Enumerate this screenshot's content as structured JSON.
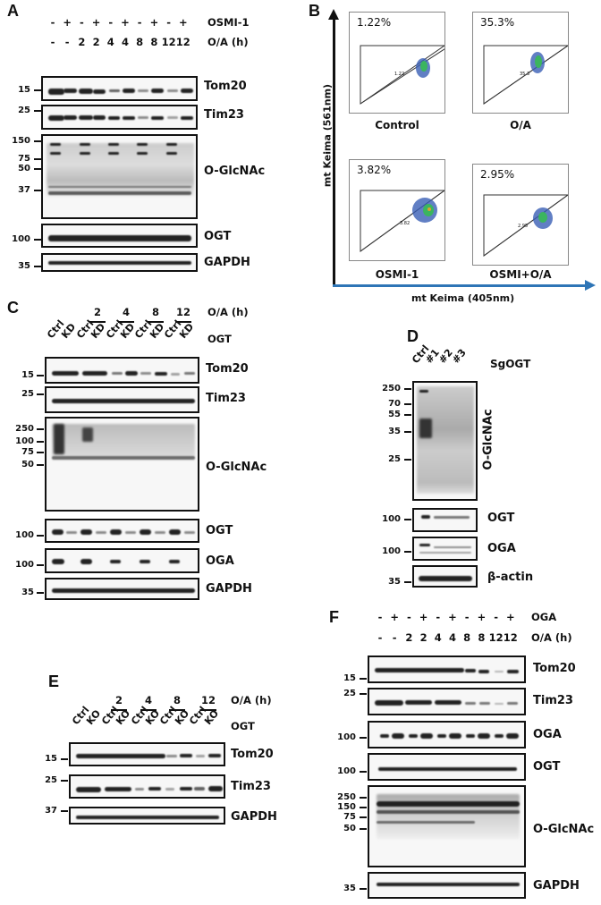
{
  "panels": {
    "A": {
      "label": "A",
      "rows": [
        {
          "label": "OSMI-1",
          "values": [
            "-",
            "+",
            "-",
            "+",
            "-",
            "+",
            "-",
            "+",
            "-",
            "+"
          ]
        },
        {
          "label": "O/A (h)",
          "values": [
            "-",
            "-",
            "2",
            "2",
            "4",
            "4",
            "8",
            "8",
            "12",
            "12"
          ]
        }
      ],
      "blots": [
        {
          "protein": "Tom20",
          "mw": [
            "15"
          ]
        },
        {
          "protein": "Tim23",
          "mw": [
            "25"
          ]
        },
        {
          "protein": "O-GlcNAc",
          "mw": [
            "150",
            "75",
            "50",
            "37"
          ]
        },
        {
          "protein": "OGT",
          "mw": [
            "100"
          ]
        },
        {
          "protein": "GAPDH",
          "mw": [
            "35"
          ]
        }
      ]
    },
    "B": {
      "label": "B",
      "y_axis": "mt Keima (561nm)",
      "x_axis": "mt Keima (405nm)",
      "plots": [
        {
          "name": "Control",
          "percent": "1.22%",
          "gate_value": "1.22"
        },
        {
          "name": "O/A",
          "percent": "35.3%",
          "gate_value": "35.3"
        },
        {
          "name": "OSMI-1",
          "percent": "3.82%",
          "gate_value": "3.82"
        },
        {
          "name": "OSMI+O/A",
          "percent": "2.95%",
          "gate_value": "2.95"
        }
      ],
      "axis_ticks": [
        "10^1",
        "10^2",
        "10^3",
        "10^4",
        "10^5"
      ]
    },
    "C": {
      "label": "C",
      "time_row_label": "O/A (h)",
      "times": [
        "2",
        "4",
        "8",
        "12"
      ],
      "genotype_row_label": "OGT",
      "lanes": [
        "Ctrl",
        "KD",
        "Ctrl",
        "KD",
        "Ctrl",
        "KD",
        "Ctrl",
        "KD",
        "Ctrl",
        "KD"
      ],
      "blots": [
        {
          "protein": "Tom20",
          "mw": [
            "15"
          ]
        },
        {
          "protein": "Tim23",
          "mw": [
            "25"
          ]
        },
        {
          "protein": "O-GlcNAc",
          "mw": [
            "250",
            "100",
            "75",
            "50"
          ]
        },
        {
          "protein": "OGT",
          "mw": [
            "100"
          ]
        },
        {
          "protein": "OGA",
          "mw": [
            "100"
          ]
        },
        {
          "protein": "GAPDH",
          "mw": [
            "35"
          ]
        }
      ]
    },
    "D": {
      "label": "D",
      "row_label": "SgOGT",
      "lanes": [
        "Ctrl",
        "#1",
        "#2",
        "#3"
      ],
      "blots": [
        {
          "protein": "O-GlcNAc",
          "mw": [
            "250",
            "70",
            "55",
            "35",
            "25"
          ]
        },
        {
          "protein": "OGT",
          "mw": [
            "100"
          ]
        },
        {
          "protein": "OGA",
          "mw": [
            "100"
          ]
        },
        {
          "protein": "β-actin",
          "mw": [
            "35"
          ]
        }
      ]
    },
    "E": {
      "label": "E",
      "time_row_label": "O/A (h)",
      "times": [
        "2",
        "4",
        "8",
        "12"
      ],
      "genotype_row_label": "OGT",
      "lanes": [
        "Ctrl",
        "KO",
        "Ctrl",
        "KO",
        "Ctrl",
        "KO",
        "Ctrl",
        "KO",
        "Ctrl",
        "KO"
      ],
      "blots": [
        {
          "protein": "Tom20",
          "mw": [
            "15"
          ]
        },
        {
          "protein": "Tim23",
          "mw": [
            "25"
          ]
        },
        {
          "protein": "GAPDH",
          "mw": [
            "37"
          ]
        }
      ]
    },
    "F": {
      "label": "F",
      "rows": [
        {
          "label": "OGA",
          "values": [
            "-",
            "+",
            "-",
            "+",
            "-",
            "+",
            "-",
            "+",
            "-",
            "+"
          ]
        },
        {
          "label": "O/A (h)",
          "values": [
            "-",
            "-",
            "2",
            "2",
            "4",
            "4",
            "8",
            "8",
            "12",
            "12"
          ]
        }
      ],
      "blots": [
        {
          "protein": "Tom20",
          "mw": [
            "15"
          ]
        },
        {
          "protein": "Tim23",
          "mw": [
            "25"
          ]
        },
        {
          "protein": "OGA",
          "mw": [
            "100"
          ]
        },
        {
          "protein": "OGT",
          "mw": [
            "100"
          ]
        },
        {
          "protein": "O-GlcNAc",
          "mw": [
            "250",
            "150",
            "75",
            "50"
          ]
        },
        {
          "protein": "GAPDH",
          "mw": [
            "35"
          ]
        }
      ]
    }
  },
  "colors": {
    "x_axis_arrow": "#2e75b6",
    "y_axis_arrow": "#111111",
    "blot_border": "#111111"
  }
}
